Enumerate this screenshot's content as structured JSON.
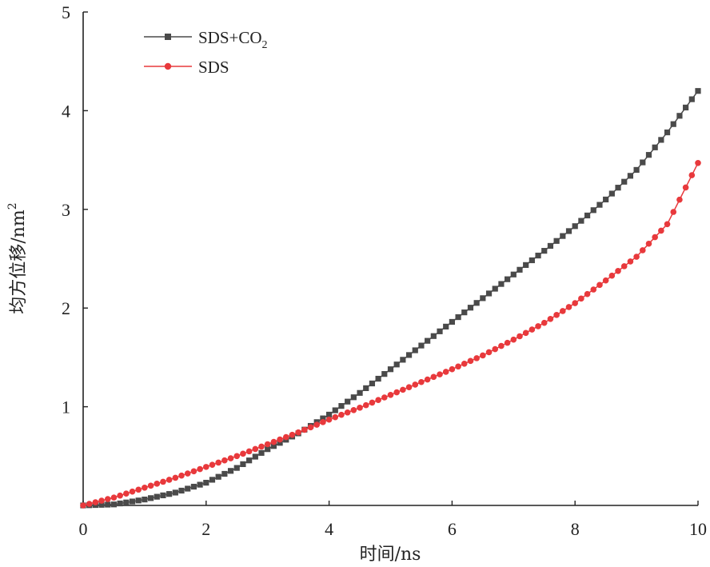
{
  "chart_data": {
    "type": "line",
    "title": "",
    "xlabel": "时间/ns",
    "ylabel": "均方位移/nm",
    "ylabel_superscript": "2",
    "xlim": [
      0,
      10
    ],
    "ylim": [
      0,
      5
    ],
    "xticks": [
      "0",
      "2",
      "4",
      "6",
      "8",
      "10"
    ],
    "yticks": [
      "1",
      "2",
      "3",
      "4",
      "5"
    ],
    "grid": false,
    "legend_position": "top-left",
    "x": [
      0,
      0.5,
      1,
      1.5,
      2,
      2.5,
      3,
      3.5,
      4,
      4.5,
      5,
      5.5,
      6,
      6.5,
      7,
      7.5,
      8,
      8.5,
      9,
      9.5,
      10
    ],
    "series": [
      {
        "name": "SDS+CO",
        "name_subscript": "2",
        "color": "#4a4a4a",
        "marker": "square",
        "values": [
          0,
          0.01,
          0.06,
          0.13,
          0.23,
          0.38,
          0.57,
          0.73,
          0.92,
          1.14,
          1.38,
          1.62,
          1.86,
          2.1,
          2.34,
          2.58,
          2.83,
          3.1,
          3.4,
          3.78,
          4.2
        ]
      },
      {
        "name": "SDS",
        "color": "#e8393c",
        "marker": "circle",
        "values": [
          0,
          0.08,
          0.18,
          0.28,
          0.39,
          0.5,
          0.62,
          0.74,
          0.87,
          0.99,
          1.12,
          1.25,
          1.38,
          1.52,
          1.68,
          1.85,
          2.05,
          2.28,
          2.52,
          2.85,
          3.47
        ]
      }
    ]
  }
}
